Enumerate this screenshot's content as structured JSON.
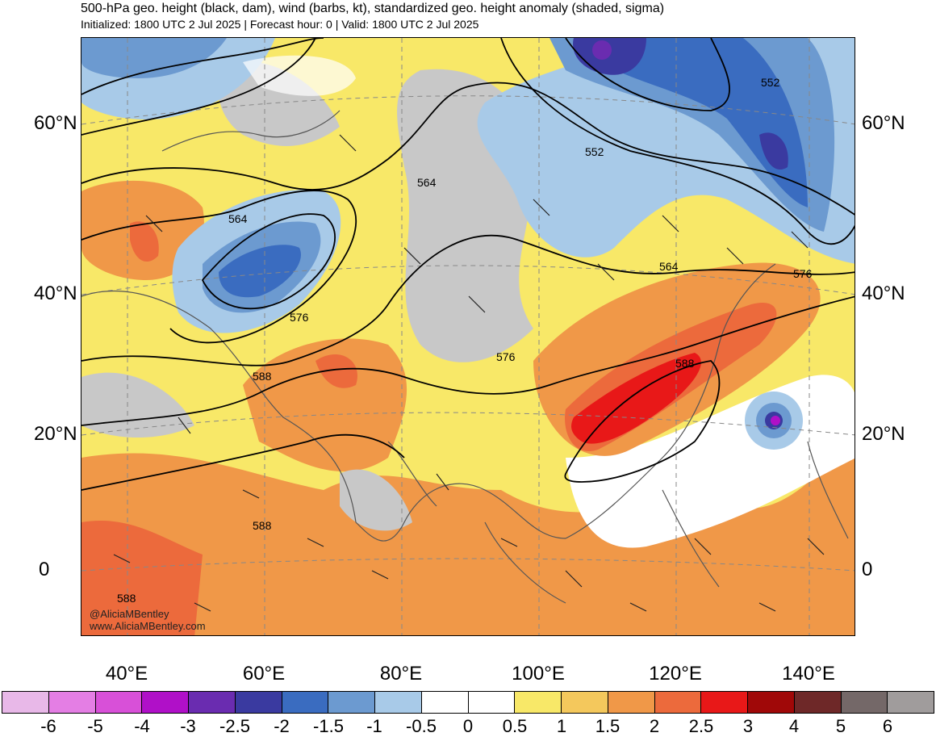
{
  "header": {
    "title": "500-hPa geo. height (black, dam), wind (barbs, kt), standardized geo. height anomaly (shaded, sigma)",
    "subtitle": "Initialized: 1800 UTC 2 Jul 2025 | Forecast hour: 0 | Valid: 1800 UTC 2 Jul 2025"
  },
  "map": {
    "lat_labels": [
      "60°N",
      "40°N",
      "20°N",
      "0"
    ],
    "lon_labels": [
      "40°E",
      "60°E",
      "80°E",
      "100°E",
      "120°E",
      "140°E"
    ],
    "contour_labels": [
      "552",
      "552",
      "564",
      "564",
      "564",
      "576",
      "576",
      "576",
      "588",
      "588",
      "588",
      "588"
    ],
    "credit_line1": "@AliciaMBentley",
    "credit_line2": "www.AliciaMBentley.com",
    "colors": {
      "neg6": "#e8b8e8",
      "neg5": "#e47ee4",
      "neg4": "#d850d8",
      "neg3": "#b010c8",
      "neg25": "#6a2cb0",
      "neg2": "#3a3aa0",
      "neg15": "#3a6cc0",
      "neg1": "#6c9ad0",
      "neg05": "#a8cae8",
      "zero_a": "#ffffff",
      "zero_b": "#ffffff",
      "pos05": "#f8e868",
      "pos1": "#f4c85c",
      "pos15": "#f09848",
      "pos2": "#ec6a3c",
      "pos25": "#e81818",
      "pos3": "#a00808",
      "pos4": "#6e2828",
      "pos5": "#746868",
      "pos6": "#a09c9c",
      "gray_land": "#c8c8c8"
    }
  },
  "colorbar": {
    "labels": [
      "-6",
      "-5",
      "-4",
      "-3",
      "-2.5",
      "-2",
      "-1.5",
      "-1",
      "-0.5",
      "0",
      "0.5",
      "1",
      "1.5",
      "2",
      "2.5",
      "3",
      "4",
      "5",
      "6"
    ],
    "colors": [
      "#e8b8e8",
      "#e47ee4",
      "#d850d8",
      "#b010c8",
      "#6a2cb0",
      "#3a3aa0",
      "#3a6cc0",
      "#6c9ad0",
      "#a8cae8",
      "#ffffff",
      "#ffffff",
      "#f8e868",
      "#f4c85c",
      "#f09848",
      "#ec6a3c",
      "#e81818",
      "#a00808",
      "#6e2828",
      "#746868",
      "#a09c9c"
    ]
  }
}
